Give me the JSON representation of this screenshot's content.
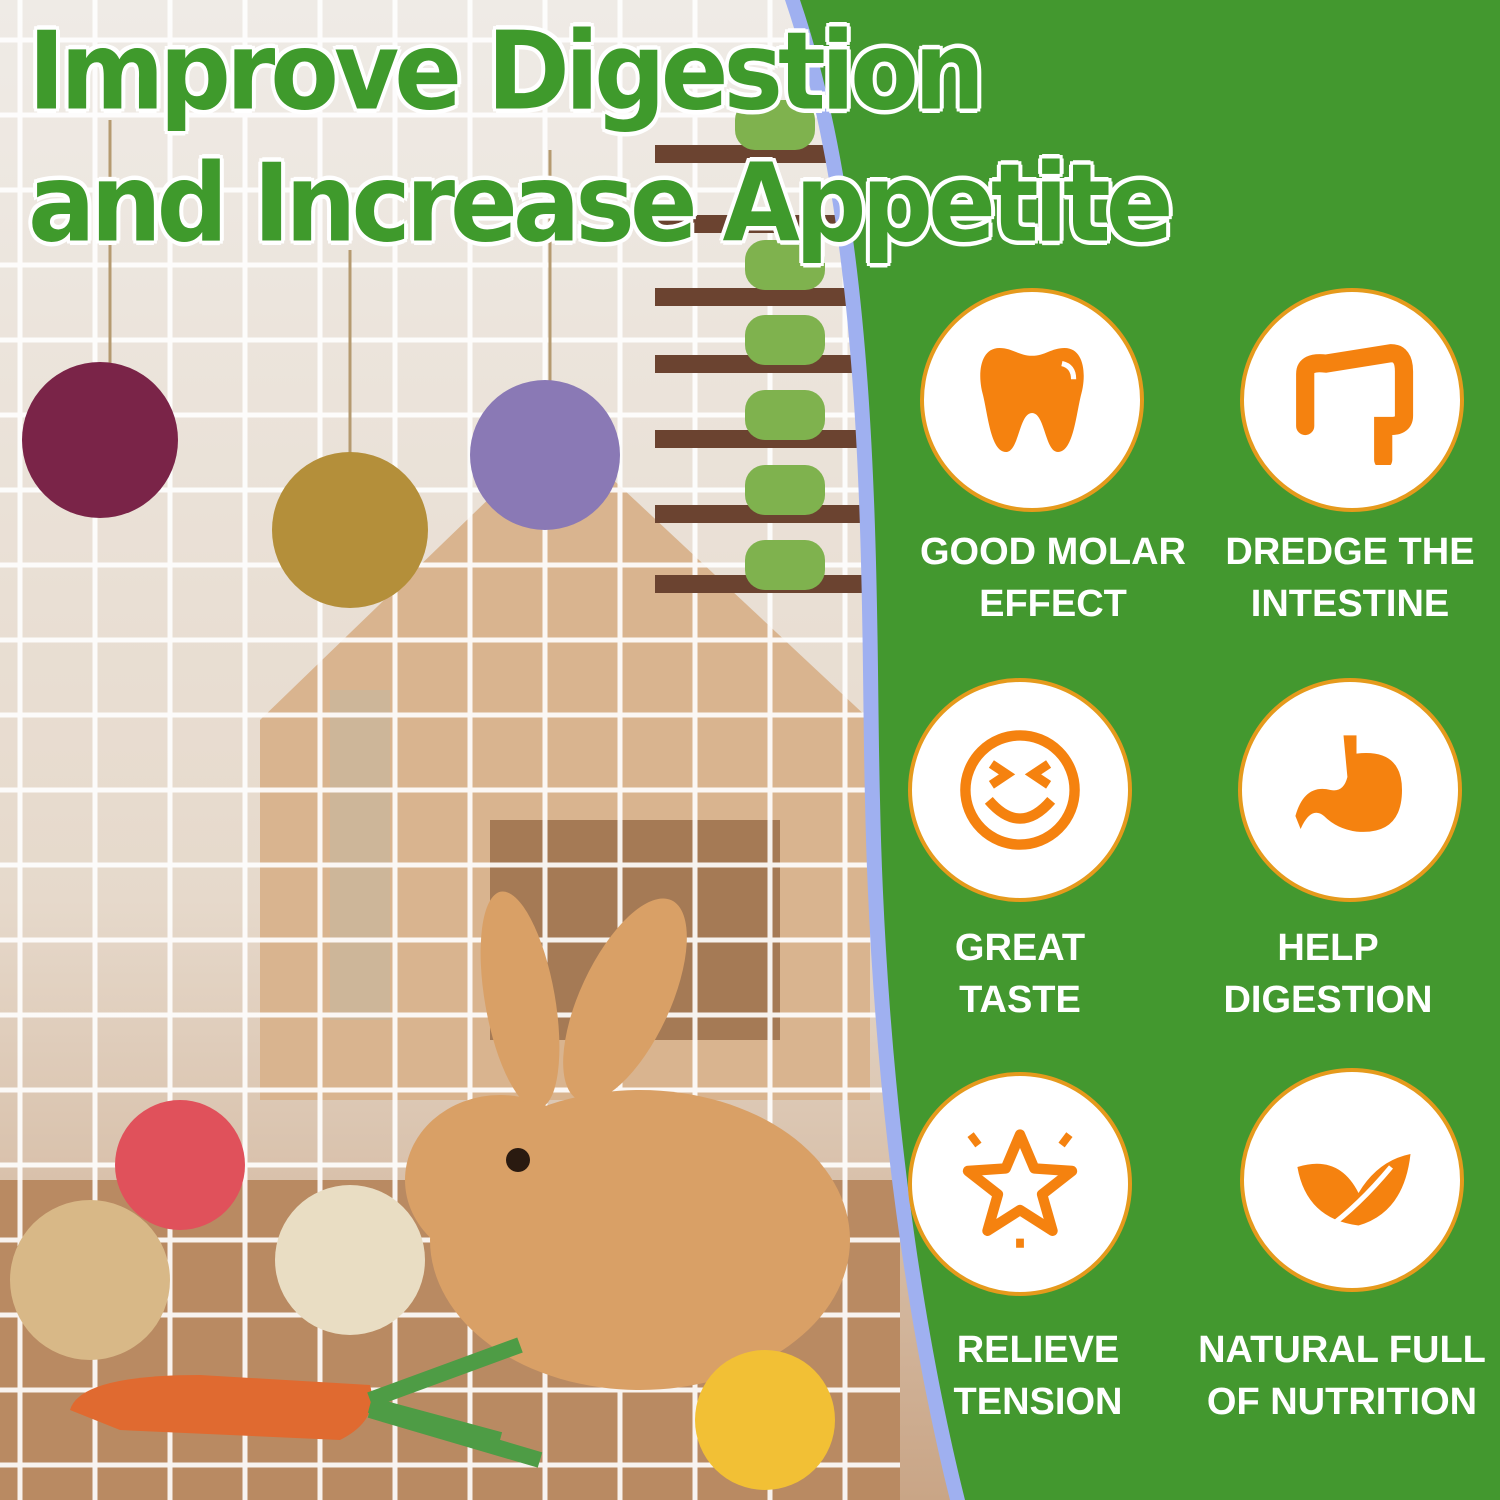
{
  "headline": {
    "line1": "Improve Digestion",
    "line2": "and Increase Appetite"
  },
  "colors": {
    "panel_green": "#43982f",
    "icon_orange": "#f5820f",
    "badge_ring": "#e59a1c",
    "title_green": "#3f9a2c"
  },
  "features": [
    {
      "icon": "tooth-icon",
      "line1": "GOOD MOLAR",
      "line2": "EFFECT"
    },
    {
      "icon": "intestine-icon",
      "line1": "DREDGE THE",
      "line2": "INTESTINE"
    },
    {
      "icon": "happy-face-icon",
      "line1": "GREAT",
      "line2": "TASTE"
    },
    {
      "icon": "stomach-icon",
      "line1": "HELP",
      "line2": "DIGESTION"
    },
    {
      "icon": "star-icon",
      "line1": "RELIEVE",
      "line2": "TENSION"
    },
    {
      "icon": "leaf-icon",
      "line1": "NATURAL FULL",
      "line2": "OF NUTRITION"
    }
  ]
}
